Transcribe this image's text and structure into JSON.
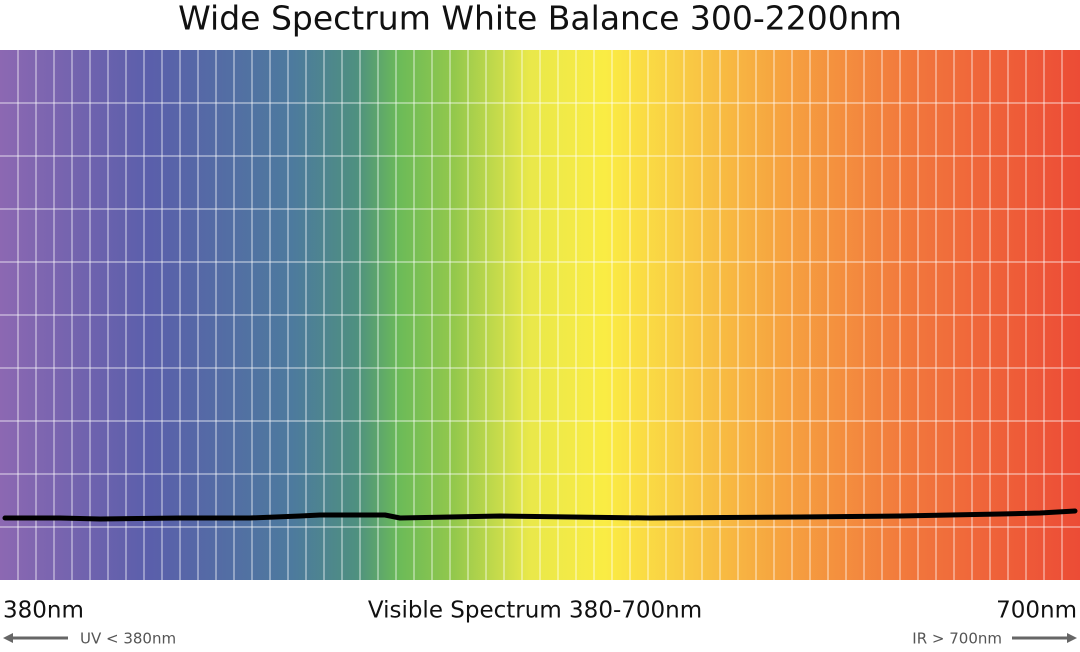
{
  "header": {
    "title": "Wide Spectrum White Balance 300-2200nm"
  },
  "axis": {
    "left_label": "380nm",
    "center_label": "Visible Spectrum 380-700nm",
    "right_label": "700nm",
    "uv_note": "UV < 380nm",
    "ir_note": "IR > 700nm"
  }
}
